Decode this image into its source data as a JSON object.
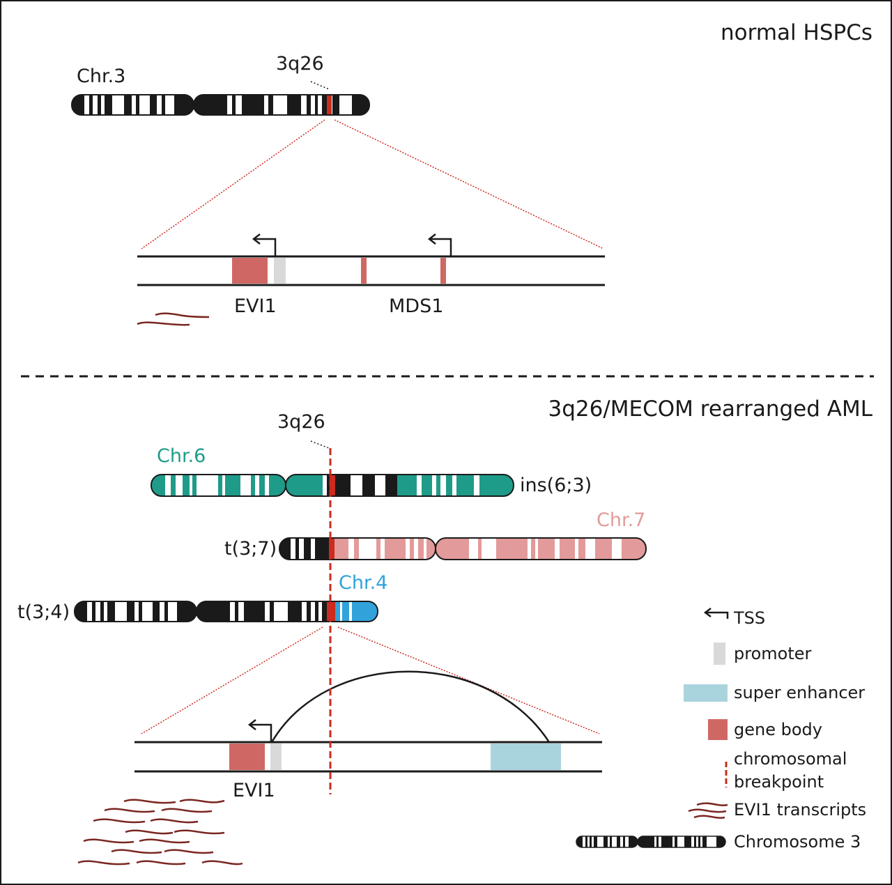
{
  "colors": {
    "ink": "#1a1a1a",
    "breakpoint_red": "#cc2b1f",
    "gene_body": "#cf6864",
    "promoter": "#d9d9d9",
    "super_enhancer": "#a9d4dd",
    "chr6_teal": "#1f9b8a",
    "chr7_pink": "#e39a9a",
    "chr4_blue": "#31a3da",
    "transcript": "#7a2620"
  },
  "normal": {
    "title": "normal HSPCs",
    "chr_label": "Chr.3",
    "locus_label": "3q26",
    "gene1": "EVI1",
    "gene2": "MDS1"
  },
  "aml": {
    "title": "3q26/MECOM rearranged AML",
    "locus_label": "3q26",
    "chr6_label": "Chr.6",
    "ins_label": "ins(6;3)",
    "chr7_label": "Chr.7",
    "t37_label": "t(3;7)",
    "chr4_label": "Chr.4",
    "t34_label": "t(3;4)",
    "gene": "EVI1"
  },
  "legend": {
    "tss": "TSS",
    "promoter": "promoter",
    "super_enhancer": "super enhancer",
    "gene_body": "gene body",
    "breakpoint_line1": "chromosomal",
    "breakpoint_line2": "breakpoint",
    "transcripts": "EVI1 transcripts",
    "chromosome3": "Chromosome 3"
  }
}
